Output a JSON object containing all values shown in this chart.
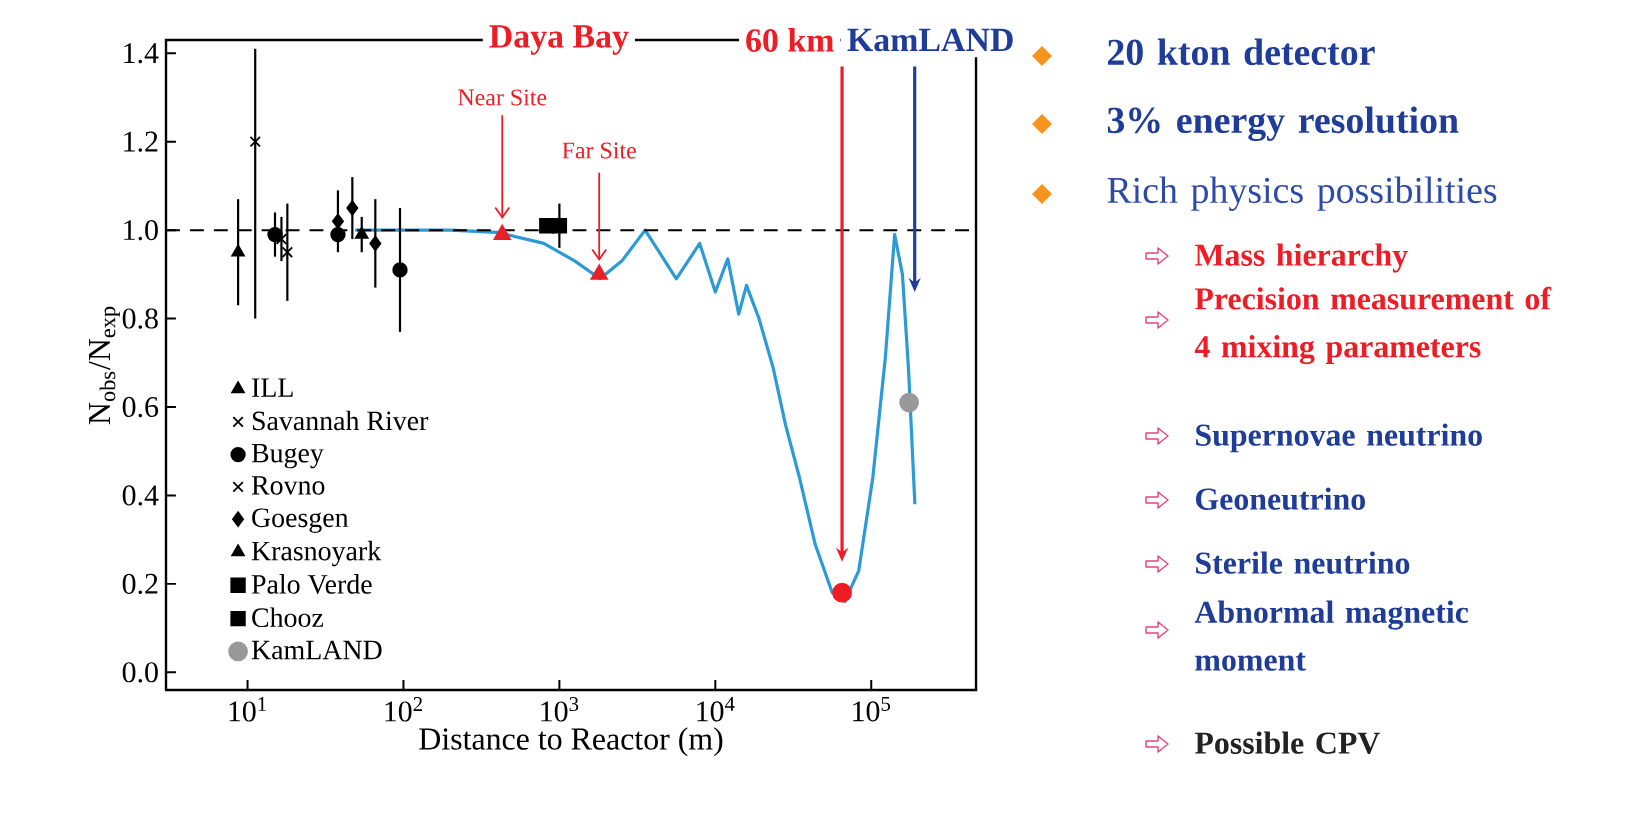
{
  "chart_data": {
    "type": "scatter",
    "xlabel": "Distance to Reactor (m)",
    "ylabel": "N$_{obs}$/N$_{exp}$",
    "log": "x",
    "xlim": [
      3,
      470000
    ],
    "ylim": [
      -0.04,
      1.43
    ],
    "xticks": [
      {
        "value": 10,
        "label": "10$^{1}$"
      },
      {
        "value": 100,
        "label": "10$^{2}$"
      },
      {
        "value": 1000,
        "label": "10$^{3}$"
      },
      {
        "value": 10000,
        "label": "10$^{4}$"
      },
      {
        "value": 100000,
        "label": "10$^{5}$"
      }
    ],
    "yticks": [
      {
        "value": 0,
        "label": "0.0"
      },
      0.2,
      0.4,
      0.6,
      0.8,
      {
        "value": 1,
        "label": "1.0"
      },
      1.2,
      1.4
    ],
    "legend": "bottom left",
    "ref_lines": [
      {
        "axis": "y",
        "value": 1,
        "line_style": "dashed",
        "color": "#000000"
      }
    ],
    "series": [
      {
        "type": "line",
        "color": "#2b9ad6",
        "x": [
          49,
          100,
          200,
          398,
          794,
          1259,
          1820,
          2512,
          3548,
          5623,
          7943,
          10000,
          12023,
          14125,
          15849,
          19055,
          23442,
          28184,
          34674,
          43652,
          56234,
          67608,
          83176,
          102329,
          123027,
          141254,
          158489,
          173780,
          190546
        ],
        "values": [
          1.0,
          1.0,
          1.0,
          0.995,
          0.97,
          0.93,
          0.89,
          0.93,
          1.0,
          0.89,
          0.97,
          0.86,
          0.935,
          0.81,
          0.875,
          0.8,
          0.69,
          0.56,
          0.44,
          0.29,
          0.18,
          0.16,
          0.23,
          0.44,
          0.71,
          0.99,
          0.9,
          0.68,
          0.38
        ]
      },
      {
        "name": "ILL",
        "marker": "triangle",
        "color": "#000000",
        "x": [
          8.7
        ],
        "values": [
          0.95
        ],
        "errors": [
          0.12
        ]
      },
      {
        "name": "Savannah River",
        "marker": "cross",
        "color": "#000000",
        "x": [
          11.2
        ],
        "values": [
          1.2
        ],
        "errors": [
          [
            0.8,
            1.41
          ]
        ]
      },
      {
        "name": "Bugey",
        "marker": "circle",
        "color": "#000000",
        "x": [
          15,
          38,
          95
        ],
        "values": [
          0.99,
          0.99,
          0.91
        ],
        "errors": [
          0.05,
          null,
          0.14
        ]
      },
      {
        "name": "Rovno",
        "marker": "cross",
        "color": "#000000",
        "x": [
          16.5,
          18
        ],
        "values": [
          0.98,
          0.95
        ],
        "errors": [
          0.05,
          0.11
        ]
      },
      {
        "name": "Goesgen",
        "marker": "diamond",
        "color": "#000000",
        "x": [
          38,
          47,
          66
        ],
        "values": [
          1.02,
          1.05,
          0.97
        ],
        "errors": [
          0.07,
          0.07,
          0.1
        ]
      },
      {
        "name": "Krasnoyark",
        "marker": "triangle",
        "color": "#000000",
        "x": [
          54
        ],
        "values": [
          0.99
        ],
        "errors": [
          0.04
        ]
      },
      {
        "name": "Palo Verde",
        "marker": "square",
        "color": "#000000",
        "x": [
          830
        ],
        "values": [
          1.01
        ],
        "errors": [
          null
        ]
      },
      {
        "name": "Chooz",
        "marker": "square",
        "color": "#000000",
        "x": [
          1000
        ],
        "values": [
          1.01
        ],
        "errors": [
          0.05
        ]
      },
      {
        "name": "KamLAND",
        "marker": "circle",
        "color": "#999999",
        "x": [
          175000
        ],
        "values": [
          0.61
        ]
      },
      {
        "marker": "triangle",
        "color": "#e8202a",
        "x": [
          430,
          1800
        ],
        "values": [
          0.99,
          0.9
        ]
      },
      {
        "marker": "circle",
        "color": "#f01c24",
        "x": [
          65000
        ],
        "values": [
          0.18
        ]
      }
    ],
    "annotations": [
      "Daya Bay",
      "60 km",
      {
        "text": "KamLAND",
        "x": 190000,
        "y": 0.86
      },
      {
        "text": "Near Site",
        "x": 430,
        "y": 0.99
      },
      {
        "text": "Far Site",
        "x": 1800,
        "y": 0.9
      },
      "20 kton detector",
      "3% energy resolution",
      "Rich physics possibilities",
      "Mass hierarchy",
      "Precision measurement of 4 mixing parameters",
      "Supernovae neutrino",
      "Geoneutrino",
      "Sterile neutrino",
      "Abnormal magnetic moment",
      "Possible CPV"
    ]
  }
}
